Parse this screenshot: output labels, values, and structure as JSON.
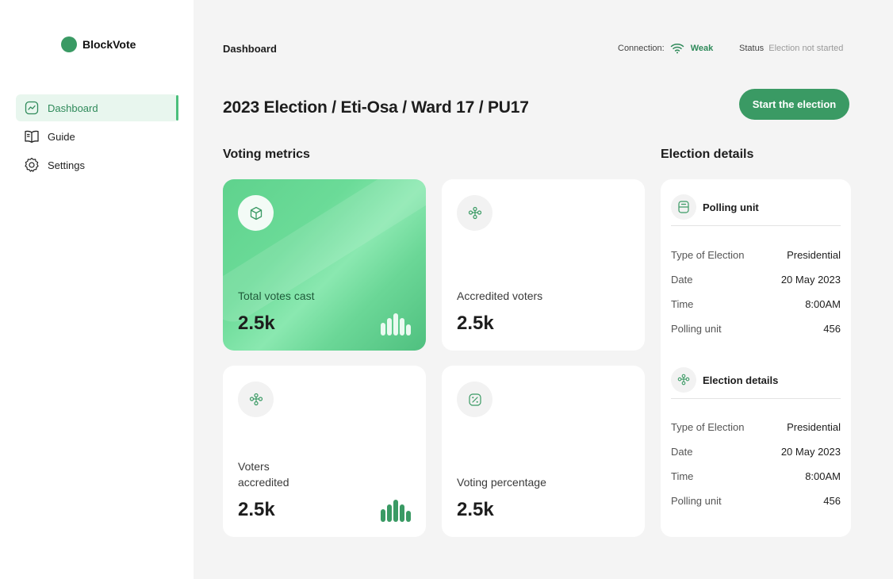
{
  "brand": {
    "name": "BlockVote",
    "dot_color": "#3a9a64"
  },
  "sidebar": {
    "items": [
      {
        "label": "Dashboard",
        "icon": "chart-line-icon",
        "active": true
      },
      {
        "label": "Guide",
        "icon": "book-icon",
        "active": false
      },
      {
        "label": "Settings",
        "icon": "gear-icon",
        "active": false
      }
    ]
  },
  "header": {
    "title": "Dashboard",
    "connection_label": "Connection:",
    "connection_value": "Weak",
    "status_label": "Status",
    "status_value": "Election not started"
  },
  "main": {
    "title": "2023 Election / Eti-Osa / Ward 17 / PU17",
    "start_button": "Start the election",
    "metrics_title": "Voting metrics",
    "cards": [
      {
        "label": "Total votes cast",
        "value": "2.5k",
        "icon": "cube-icon"
      },
      {
        "label": "Accredited voters",
        "value": "2.5k",
        "icon": "users-network-icon"
      },
      {
        "label_line1": "Voters",
        "label_line2": "accredited",
        "value": "2.5k",
        "icon": "users-network-icon"
      },
      {
        "label": "Voting percentage",
        "value": "2.5k",
        "icon": "percent-icon"
      }
    ]
  },
  "details": {
    "title": "Election details",
    "sections": [
      {
        "title": "Polling unit",
        "icon": "ballot-box-icon",
        "rows": [
          {
            "key": "Type of Election",
            "value": "Presidential"
          },
          {
            "key": "Date",
            "value": "20 May 2023"
          },
          {
            "key": "Time",
            "value": "8:00AM"
          },
          {
            "key": "Polling unit",
            "value": "456"
          }
        ]
      },
      {
        "title": "Election details",
        "icon": "users-network-icon",
        "rows": [
          {
            "key": "Type of Election",
            "value": "Presidential"
          },
          {
            "key": "Date",
            "value": "20 May 2023"
          },
          {
            "key": "Time",
            "value": "8:00AM"
          },
          {
            "key": "Polling unit",
            "value": "456"
          }
        ]
      }
    ]
  },
  "colors": {
    "accent": "#3a9a64",
    "accent_light": "#e8f6ee",
    "background": "#f4f4f4"
  }
}
